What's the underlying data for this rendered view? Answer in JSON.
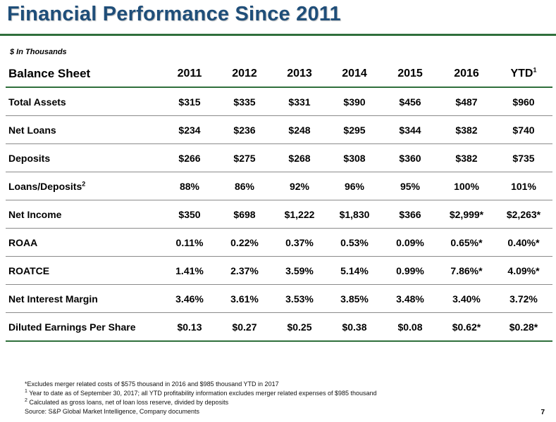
{
  "title": "Financial Performance Since 2011",
  "units": "$ In Thousands",
  "table": {
    "header_label": "Balance Sheet",
    "years": [
      "2011",
      "2012",
      "2013",
      "2014",
      "2015",
      "2016",
      "YTD"
    ],
    "ytd_sup": "1",
    "rows": [
      {
        "label": "Total Assets",
        "sup": "",
        "values": [
          "$315",
          "$335",
          "$331",
          "$390",
          "$456",
          "$487",
          "$960"
        ]
      },
      {
        "label": "Net Loans",
        "sup": "",
        "values": [
          "$234",
          "$236",
          "$248",
          "$295",
          "$344",
          "$382",
          "$740"
        ]
      },
      {
        "label": "Deposits",
        "sup": "",
        "values": [
          "$266",
          "$275",
          "$268",
          "$308",
          "$360",
          "$382",
          "$735"
        ]
      },
      {
        "label": "Loans/Deposits",
        "sup": "2",
        "values": [
          "88%",
          "86%",
          "92%",
          "96%",
          "95%",
          "100%",
          "101%"
        ]
      },
      {
        "label": "Net Income",
        "sup": "",
        "values": [
          "$350",
          "$698",
          "$1,222",
          "$1,830",
          "$366",
          "$2,999*",
          "$2,263*"
        ]
      },
      {
        "label": "ROAA",
        "sup": "",
        "values": [
          "0.11%",
          "0.22%",
          "0.37%",
          "0.53%",
          "0.09%",
          "0.65%*",
          "0.40%*"
        ]
      },
      {
        "label": "ROATCE",
        "sup": "",
        "values": [
          "1.41%",
          "2.37%",
          "3.59%",
          "5.14%",
          "0.99%",
          "7.86%*",
          "4.09%*"
        ]
      },
      {
        "label": "Net Interest Margin",
        "sup": "",
        "values": [
          "3.46%",
          "3.61%",
          "3.53%",
          "3.85%",
          "3.48%",
          "3.40%",
          "3.72%"
        ]
      },
      {
        "label": "Diluted Earnings Per Share",
        "sup": "",
        "values": [
          "$0.13",
          "$0.27",
          "$0.25",
          "$0.38",
          "$0.08",
          "$0.62*",
          "$0.28*"
        ]
      }
    ]
  },
  "footnotes": {
    "star": "*Excludes merger  related costs of $575 thousand in 2016 and $985 thousand YTD  in 2017",
    "note1_sup": "1",
    "note1": " Year to date as of September  30, 2017; all YTD profitability information excludes merger related expenses of $985 thousand",
    "note2_sup": "2",
    "note2": " Calculated as gross loans, net of loan loss reserve, divided by deposits",
    "source": "Source: S&P Global Market Intelligence, Company documents"
  },
  "page_number": "7",
  "colors": {
    "title": "#1f4e79",
    "rule": "#2f6f3b"
  }
}
